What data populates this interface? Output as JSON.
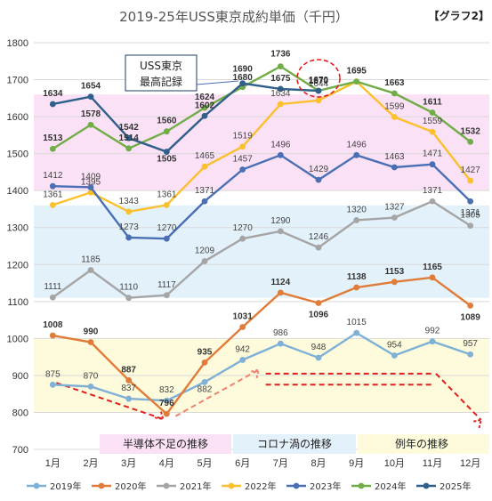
{
  "title": "2019-25年USS東京成約単価（千円）",
  "corner_label": "【グラフ2】",
  "callout_lines": [
    "USS東京",
    "最高記録"
  ],
  "band_labels": [
    "半導体不足の推移",
    "コロナ渦の推移",
    "例年の推移"
  ],
  "colors": {
    "2019": "#7fb0d6",
    "2020": "#e07b39",
    "2021": "#a5a5a5",
    "2022": "#fbc02d",
    "2023": "#4a6fb5",
    "2024": "#70ad47",
    "2025": "#2f5f8a",
    "pink_band": "#fbe1f5",
    "blue_band": "#e3f1fb",
    "yellow_band": "#fdfbdc",
    "red_dash": "#e02020",
    "callout_border": "#1f3c66"
  },
  "chart_data": {
    "type": "line",
    "categories": [
      "1月",
      "2月",
      "3月",
      "4月",
      "5月",
      "6月",
      "7月",
      "8月",
      "9月",
      "10月",
      "11月",
      "12月"
    ],
    "ylim": [
      700,
      1800
    ],
    "yticks": [
      700,
      800,
      900,
      1000,
      1100,
      1200,
      1300,
      1400,
      1500,
      1600,
      1700,
      1800
    ],
    "grid": "horizontal",
    "legend_position": "bottom",
    "series": [
      {
        "name": "2019年",
        "key": "2019",
        "values": [
          875,
          870,
          837,
          832,
          882,
          942,
          986,
          948,
          1015,
          954,
          992,
          957
        ]
      },
      {
        "name": "2020年",
        "key": "2020",
        "values": [
          1008,
          990,
          887,
          796,
          935,
          1031,
          1124,
          1096,
          1138,
          1153,
          1165,
          1089
        ]
      },
      {
        "name": "2021年",
        "key": "2021",
        "values": [
          1111,
          1185,
          1110,
          1117,
          1209,
          1270,
          1290,
          1246,
          1320,
          1327,
          1371,
          1305
        ]
      },
      {
        "name": "2022年",
        "key": "2022",
        "values": [
          1361,
          1395,
          1343,
          1361,
          1465,
          1519,
          1634,
          1644,
          1695,
          1599,
          1559,
          1427
        ]
      },
      {
        "name": "2023年",
        "key": "2023",
        "values": [
          1412,
          1409,
          1273,
          1270,
          1371,
          1457,
          1496,
          1429,
          1496,
          1463,
          1471,
          1371
        ]
      },
      {
        "name": "2024年",
        "key": "2024",
        "values": [
          1513,
          1578,
          1514,
          1560,
          1624,
          1680,
          1736,
          1670,
          1695,
          1663,
          1611,
          1532
        ]
      },
      {
        "name": "2025年",
        "key": "2025",
        "values": [
          1634,
          1654,
          1542,
          1505,
          1602,
          1690,
          1675,
          1670,
          null,
          null,
          null,
          null
        ]
      }
    ]
  }
}
